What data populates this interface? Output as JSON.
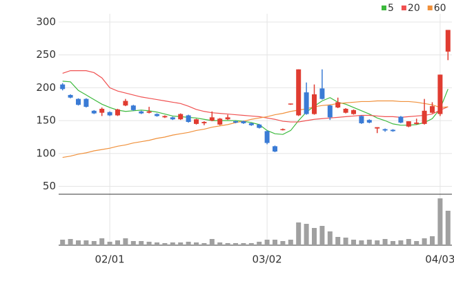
{
  "chart_data": {
    "type": "candlestick",
    "categories": [
      null,
      null,
      null,
      null,
      null,
      null,
      "02/01",
      null,
      null,
      null,
      null,
      null,
      null,
      null,
      null,
      null,
      null,
      null,
      null,
      null,
      null,
      null,
      null,
      null,
      null,
      null,
      "03/02",
      null,
      null,
      null,
      null,
      null,
      null,
      null,
      null,
      null,
      null,
      null,
      null,
      null,
      null,
      null,
      null,
      null,
      null,
      null,
      null,
      null,
      "04/03",
      null
    ],
    "open": [
      205,
      189,
      183,
      183,
      165,
      162,
      163,
      158,
      173,
      173,
      164,
      162,
      160,
      155,
      155,
      152,
      158,
      145,
      146,
      150,
      144,
      152,
      149,
      149,
      146,
      144,
      134,
      111,
      136,
      175,
      158,
      193,
      160,
      199,
      173,
      170,
      162,
      160,
      157,
      151,
      138,
      137,
      136,
      156,
      141,
      145,
      145,
      162,
      160,
      255
    ],
    "high": [
      207,
      190,
      184,
      184,
      166,
      170,
      164,
      168,
      183,
      174,
      165,
      171,
      161,
      158,
      156,
      161,
      159,
      153,
      149,
      164,
      154,
      159,
      150,
      150,
      147,
      145,
      135,
      112,
      138,
      176,
      228,
      208,
      205,
      228,
      174,
      185,
      169,
      167,
      158,
      152,
      140,
      138,
      137,
      157,
      149,
      153,
      183,
      178,
      220,
      288
    ],
    "low": [
      196,
      184,
      173,
      170,
      160,
      157,
      157,
      157,
      172,
      165,
      160,
      161,
      156,
      154,
      151,
      151,
      147,
      144,
      143,
      149,
      143,
      151,
      146,
      145,
      142,
      138,
      114,
      102,
      135,
      174,
      157,
      159,
      159,
      182,
      151,
      169,
      161,
      159,
      145,
      146,
      131,
      133,
      133,
      146,
      140,
      144,
      144,
      161,
      157,
      242
    ],
    "close": [
      198,
      185,
      174,
      171,
      161,
      168,
      158,
      167,
      180,
      166,
      161,
      164,
      157,
      157,
      152,
      160,
      148,
      152,
      148,
      155,
      153,
      155,
      147,
      146,
      143,
      139,
      116,
      103,
      137,
      176,
      228,
      160,
      190,
      183,
      155,
      178,
      168,
      166,
      146,
      147,
      140,
      135,
      134,
      147,
      149,
      147,
      165,
      172,
      220,
      288
    ],
    "up_color": "#e03c31",
    "down_color": "#3a7bd5",
    "moving_averages": [
      {
        "name": "5",
        "color": "#3cb93c",
        "values": [
          210,
          209,
          196,
          189,
          182,
          175,
          170,
          166,
          164,
          165,
          166,
          165,
          163,
          160,
          157,
          156,
          155,
          154,
          152,
          150,
          150,
          150,
          150,
          149,
          147,
          144,
          135,
          130,
          129,
          135,
          150,
          163,
          172,
          180,
          185,
          178,
          175,
          170,
          165,
          160,
          154,
          150,
          145,
          143,
          143,
          144,
          147,
          153,
          168,
          198
        ]
      },
      {
        "name": "20",
        "color": "#f05050",
        "values": [
          222,
          226,
          226,
          226,
          223,
          215,
          200,
          195,
          192,
          189,
          186,
          184,
          182,
          180,
          178,
          176,
          172,
          167,
          164,
          162,
          161,
          160,
          159,
          158,
          157,
          156,
          154,
          152,
          149,
          148,
          148,
          150,
          152,
          153,
          154,
          155,
          156,
          157,
          158,
          158,
          157,
          156,
          156,
          155,
          156,
          157,
          158,
          160,
          166,
          171
        ]
      },
      {
        "name": "60",
        "color": "#f0903a",
        "values": [
          94,
          96,
          99,
          101,
          104,
          106,
          108,
          111,
          113,
          116,
          118,
          120,
          123,
          125,
          128,
          130,
          132,
          135,
          137,
          140,
          142,
          144,
          147,
          149,
          152,
          154,
          156,
          159,
          161,
          164,
          166,
          168,
          171,
          173,
          174,
          176,
          177,
          178,
          179,
          179,
          180,
          180,
          180,
          179,
          179,
          178,
          176,
          174,
          170,
          171
        ]
      }
    ],
    "volume": [
      8,
      9,
      7,
      7,
      6,
      10,
      5,
      7,
      10,
      6,
      6,
      5,
      4,
      3,
      4,
      4,
      5,
      4,
      3,
      9,
      4,
      3,
      3,
      3,
      3,
      5,
      8,
      8,
      6,
      8,
      33,
      31,
      25,
      28,
      20,
      12,
      11,
      8,
      7,
      8,
      7,
      9,
      6,
      7,
      9,
      6,
      10,
      13,
      68,
      50
    ],
    "volume_color": "#a0a0a0",
    "volume_ylim": [
      0,
      70
    ],
    "ylim": [
      38,
      300
    ],
    "yticks": [
      50,
      100,
      150,
      200,
      250,
      300
    ],
    "grid": true
  }
}
